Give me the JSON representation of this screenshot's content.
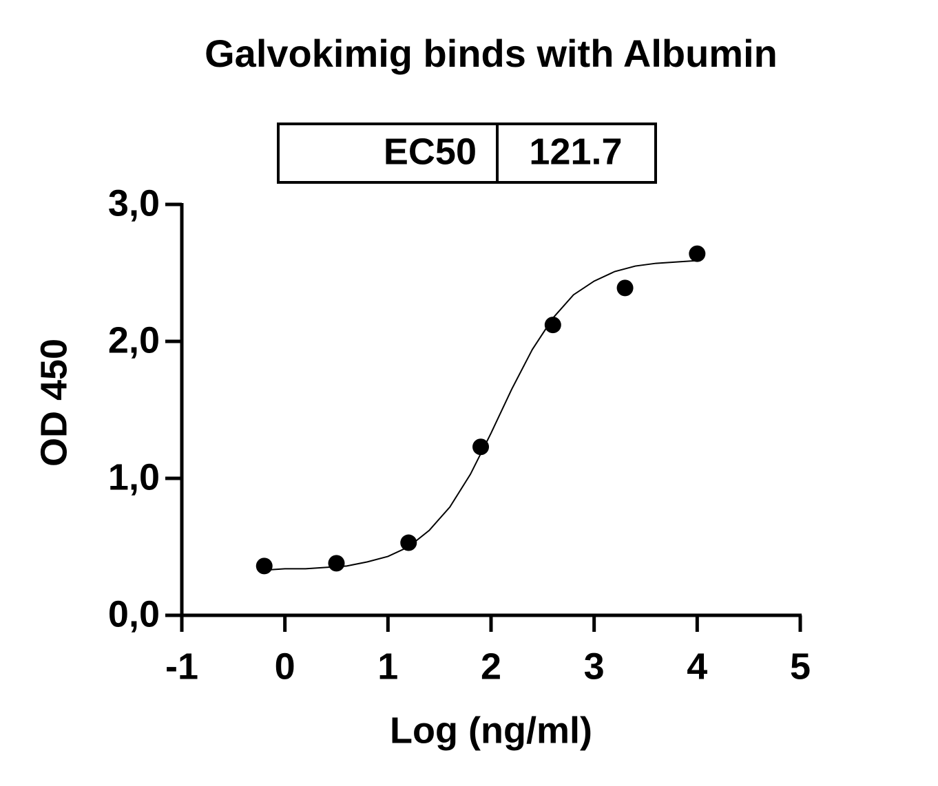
{
  "chart_data": {
    "type": "scatter",
    "title": "Galvokimig binds with Albumin",
    "table": [
      [
        "EC50",
        "121.7"
      ]
    ],
    "x_label": "Log (ng/ml)",
    "y_label": "OD 450",
    "x": [
      -0.2,
      0.5,
      1.2,
      1.9,
      2.6,
      3.3,
      4.0
    ],
    "values": [
      0.36,
      0.38,
      0.53,
      1.23,
      2.12,
      2.39,
      2.64
    ],
    "color": "#000000",
    "fit": {
      "x": [
        -0.2,
        0,
        0.2,
        0.4,
        0.6,
        0.8,
        1.0,
        1.2,
        1.4,
        1.6,
        1.8,
        2.0,
        2.2,
        2.4,
        2.6,
        2.8,
        3.0,
        3.2,
        3.4,
        3.6,
        3.8,
        4.0
      ],
      "values": [
        0.33,
        0.34,
        0.34,
        0.35,
        0.36,
        0.39,
        0.43,
        0.5,
        0.62,
        0.79,
        1.03,
        1.33,
        1.65,
        1.94,
        2.17,
        2.34,
        2.44,
        2.51,
        2.55,
        2.57,
        2.58,
        2.59
      ]
    },
    "xlim": [
      -1,
      5
    ],
    "xticks": [
      -1,
      0,
      1,
      2,
      3,
      4,
      5
    ],
    "ylim": [
      0,
      3
    ],
    "yticks": [
      {
        "value": 0,
        "label": "0,0"
      },
      {
        "value": 1,
        "label": "1,0"
      },
      {
        "value": 2,
        "label": "2,0"
      },
      {
        "value": 3,
        "label": "3,0"
      }
    ],
    "grid": false
  }
}
